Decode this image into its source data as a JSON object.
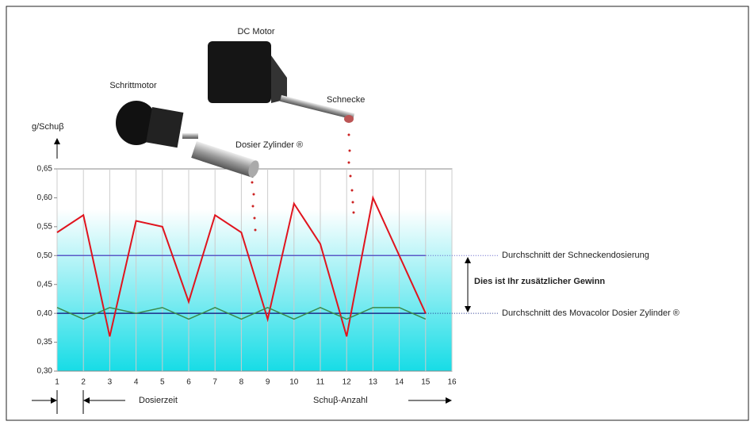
{
  "chart_data": {
    "type": "line",
    "y_label": "g/Schuβ",
    "x_label": "Schuβ-Anzahl",
    "interval_label": "Dosierzeit",
    "gain_label": "Dies ist Ihr zusätzlicher Gewinn",
    "component_labels": [
      "DC Motor",
      "Schrittmotor",
      "Schnecke",
      "Dosier Zylinder ®"
    ],
    "x": [
      1,
      2,
      3,
      4,
      5,
      6,
      7,
      8,
      9,
      10,
      11,
      12,
      13,
      14,
      15
    ],
    "series": [
      {
        "color": "#e0141e",
        "values": [
          0.54,
          0.57,
          0.36,
          0.56,
          0.55,
          0.42,
          0.57,
          0.54,
          0.39,
          0.59,
          0.52,
          0.36,
          0.6,
          0.5,
          0.4
        ]
      },
      {
        "color": "#3a8a4a",
        "values": [
          0.41,
          0.39,
          0.41,
          0.4,
          0.41,
          0.39,
          0.41,
          0.39,
          0.41,
          0.39,
          0.41,
          0.39,
          0.41,
          0.41,
          0.39
        ]
      }
    ],
    "reference_lines": [
      {
        "value": 0.5,
        "label": "Durchschnitt der  Schneckendosierung",
        "color": "#5a5ac8"
      },
      {
        "value": 0.4,
        "label": "Durchschnitt des Movacolor Dosier Zylinder ®",
        "color": "#1a2a8a"
      }
    ],
    "xlim": [
      1,
      16
    ],
    "xticks": [
      1,
      2,
      3,
      4,
      5,
      6,
      7,
      8,
      9,
      10,
      11,
      12,
      13,
      14,
      15,
      16
    ],
    "ylim": [
      0.3,
      0.65
    ],
    "yticks": [
      {
        "value": 0.3,
        "label": "0,30"
      },
      {
        "value": 0.35,
        "label": "0,35"
      },
      {
        "value": 0.4,
        "label": "0,40"
      },
      {
        "value": 0.45,
        "label": "0,45"
      },
      {
        "value": 0.5,
        "label": "0,50"
      },
      {
        "value": 0.55,
        "label": "0,55"
      },
      {
        "value": 0.6,
        "label": "0,60"
      },
      {
        "value": 0.65,
        "label": "0,65"
      }
    ],
    "grid": "x"
  }
}
